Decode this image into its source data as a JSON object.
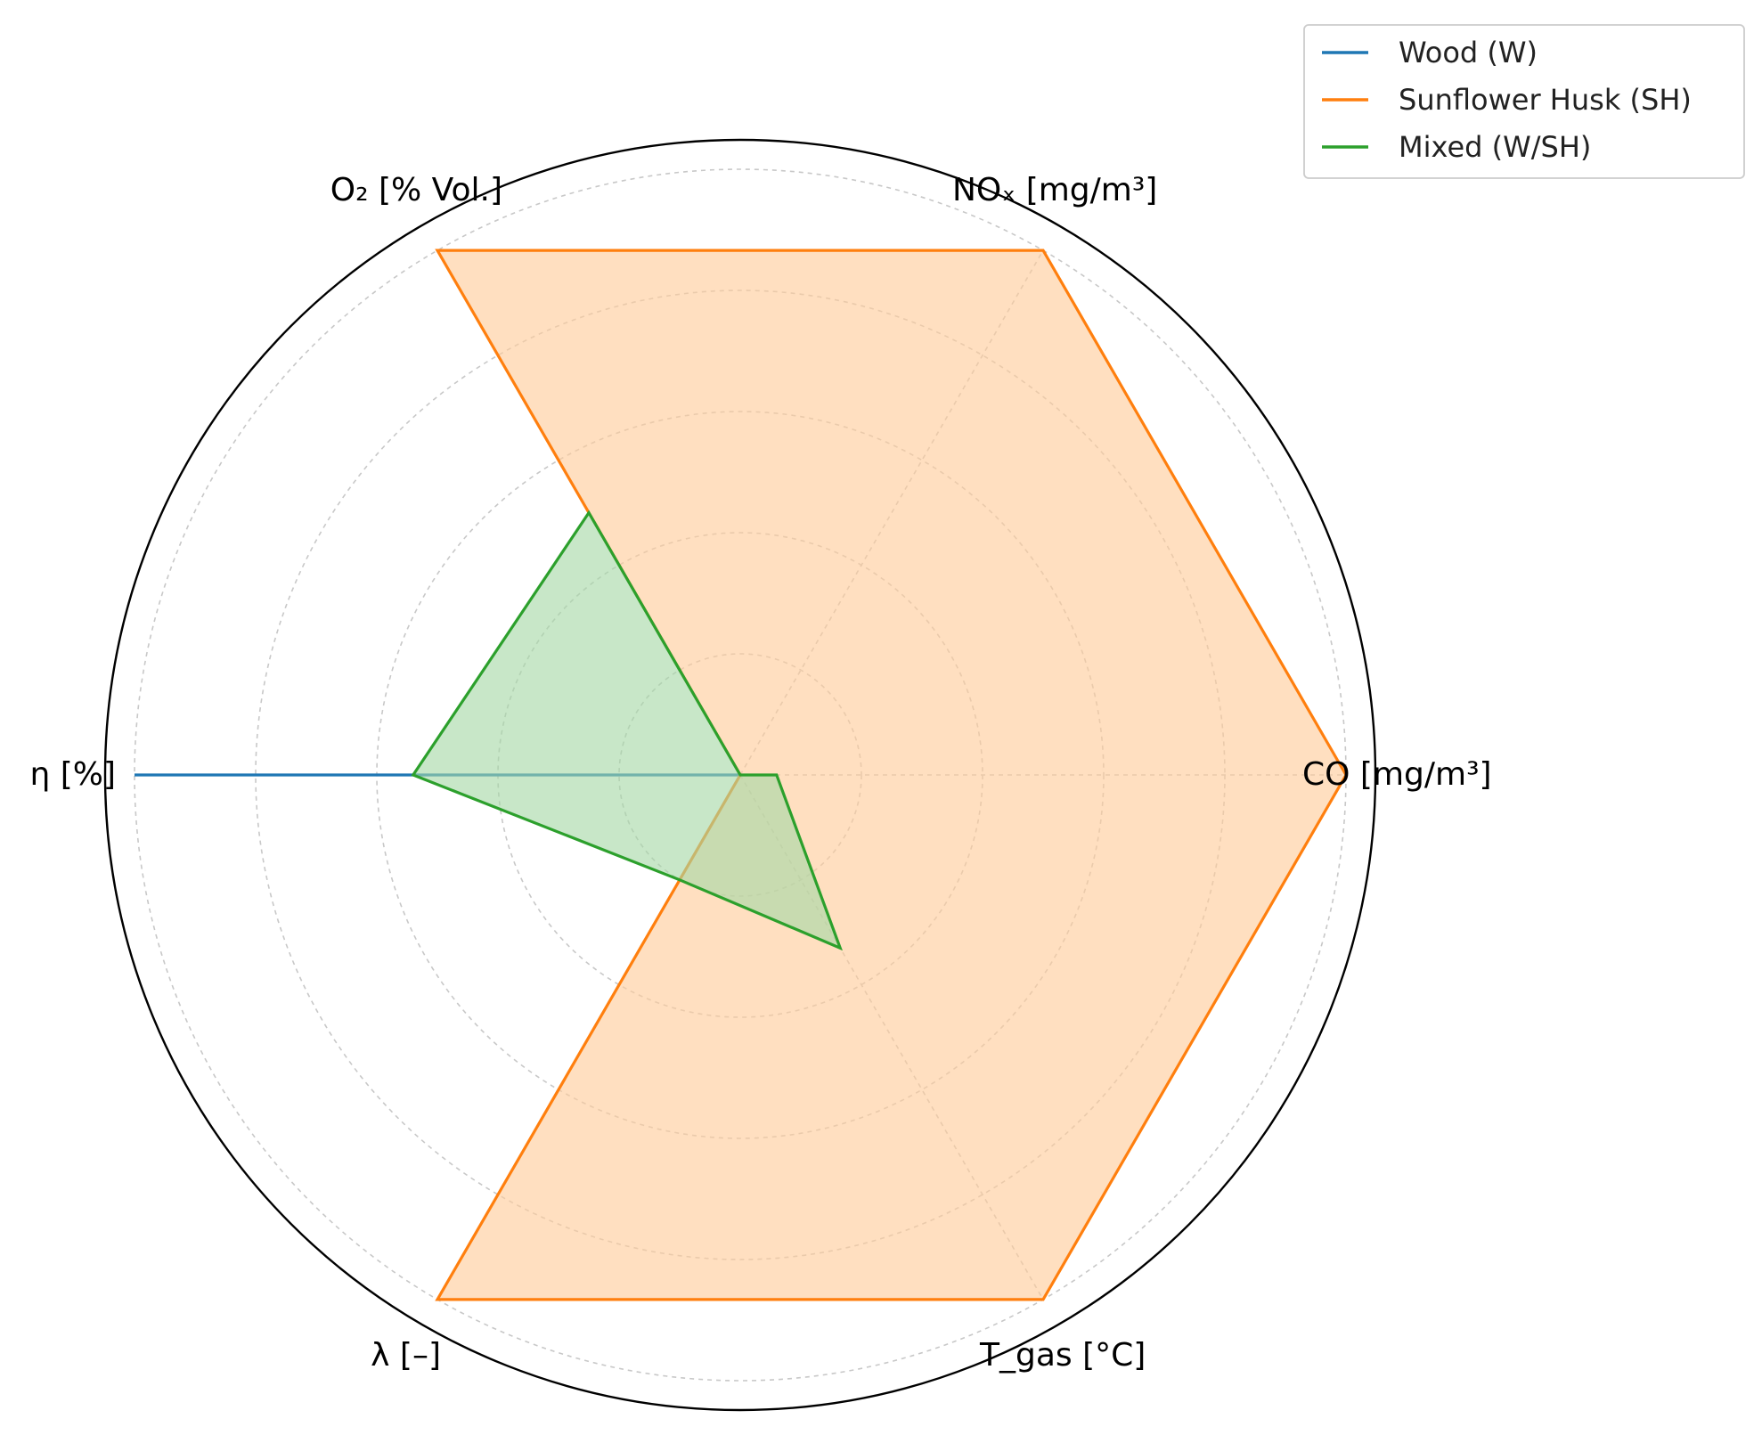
{
  "chart_data": {
    "type": "radar",
    "title": "",
    "axes": [
      "CO [mg/m³]",
      "NOₓ [mg/m³]",
      "O₂ [% Vol.]",
      "η [%]",
      "λ [–]",
      "T_gas [°C]"
    ],
    "rlim": [
      0,
      1
    ],
    "rgrid": [
      0.2,
      0.4,
      0.6,
      0.8,
      1.0
    ],
    "grid": true,
    "grid_style": "dashed",
    "legend_position": "top-right",
    "series": [
      {
        "name": "Wood (W)",
        "color": "#1f77b4",
        "filled": false,
        "values": [
          0.0,
          0.0,
          0.0,
          1.0,
          0.0,
          0.0
        ]
      },
      {
        "name": "Sunflower Husk (SH)",
        "color": "#ff7f0e",
        "fill_color": "#ffcc99",
        "filled": true,
        "values": [
          1.0,
          1.0,
          1.0,
          0.0,
          1.0,
          1.0
        ]
      },
      {
        "name": "Mixed (W/SH)",
        "color": "#2ca02c",
        "fill_color": "#a6d9a6",
        "filled": true,
        "values": [
          0.06,
          0.0,
          0.5,
          0.54,
          0.2,
          0.33
        ]
      }
    ]
  }
}
